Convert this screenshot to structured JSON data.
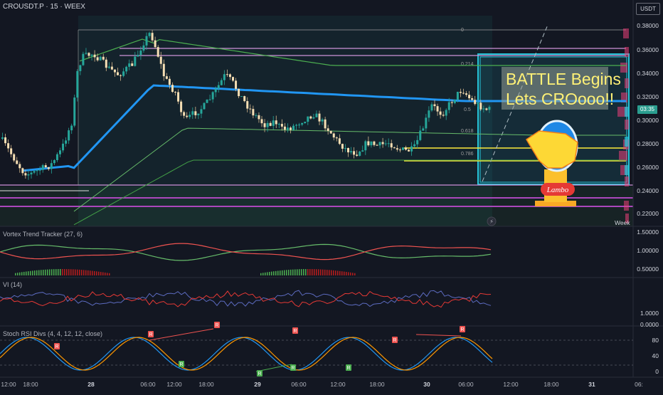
{
  "header": {
    "symbol_title": "CROUSDT.P · 15 · WEEX",
    "currency_button": "USDT"
  },
  "panes": {
    "vortex_label": "Vortex Trend Tracker (27, 6)",
    "vi_label": "VI (14)",
    "stoch_label": "Stoch RSI Divs (4, 4, 12, 12, close)"
  },
  "price_axis": [
    "0.38000",
    "0.36000",
    "0.34000",
    "0.32000",
    "0.30000",
    "0.28000",
    "0.26000",
    "0.24000",
    "0.22000"
  ],
  "vortex_axis": [
    "1.50000",
    "1.00000",
    "0.50000"
  ],
  "vi_axis": [
    "1.0000",
    "0.0000"
  ],
  "stoch_axis": [
    "80",
    "40",
    "0"
  ],
  "countdown": "03:35",
  "time_axis": [
    {
      "label": "12:00",
      "bold": false
    },
    {
      "label": "18:00",
      "bold": false
    },
    {
      "label": "28",
      "bold": true
    },
    {
      "label": "06:00",
      "bold": false
    },
    {
      "label": "12:00",
      "bold": false
    },
    {
      "label": "18:00",
      "bold": false
    },
    {
      "label": "29",
      "bold": true
    },
    {
      "label": "06:00",
      "bold": false
    },
    {
      "label": "12:00",
      "bold": false
    },
    {
      "label": "18:00",
      "bold": false
    },
    {
      "label": "30",
      "bold": true
    },
    {
      "label": "06:00",
      "bold": false
    },
    {
      "label": "12:00",
      "bold": false
    },
    {
      "label": "18:00",
      "bold": false
    },
    {
      "label": "31",
      "bold": true
    },
    {
      "label": "06:"
    }
  ],
  "fib_labels": [
    "0",
    "0.214",
    "0.5",
    "0.618",
    "0.786"
  ],
  "annotation": {
    "line1": "BATTLE Begins",
    "line2": "Lets CROooo!!"
  },
  "lambo_text": "Lambo",
  "week_tag": "Week",
  "div_markers": [
    "R",
    "R",
    "R",
    "R",
    "R",
    "R",
    "R",
    "R",
    "R",
    "R"
  ],
  "colors": {
    "bull": "#26a69a",
    "bear": "#ef5350",
    "candle_body": "#f5deb3",
    "vwap": "#2196f3",
    "band": "#4caf50",
    "fib_box": "#ce93d8",
    "highlight_box": "#26c6da",
    "yellow": "#ffeb3b",
    "background": "#131722"
  }
}
